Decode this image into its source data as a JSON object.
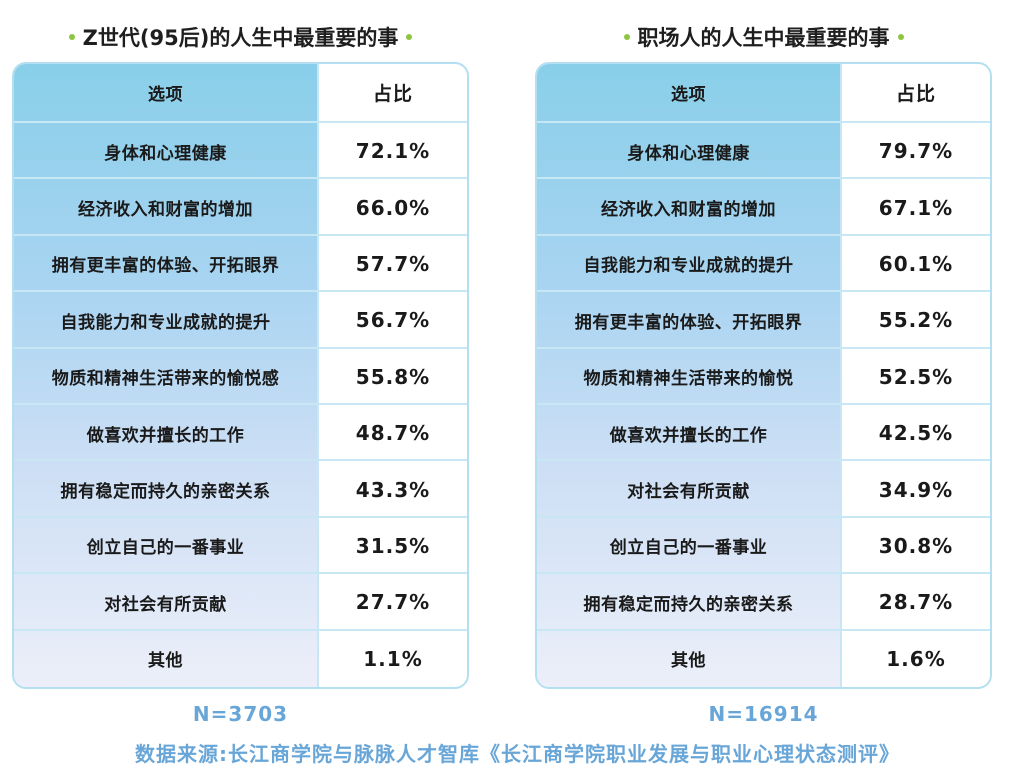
{
  "left": {
    "title": "Z世代(95后)的人生中最重要的事",
    "header": {
      "option": "选项",
      "ratio": "占比"
    },
    "rows": [
      {
        "option": "身体和心理健康",
        "ratio": "72.1%"
      },
      {
        "option": "经济收入和财富的增加",
        "ratio": "66.0%"
      },
      {
        "option": "拥有更丰富的体验、开拓眼界",
        "ratio": "57.7%"
      },
      {
        "option": "自我能力和专业成就的提升",
        "ratio": "56.7%"
      },
      {
        "option": "物质和精神生活带来的愉悦感",
        "ratio": "55.8%"
      },
      {
        "option": "做喜欢并擅长的工作",
        "ratio": "48.7%"
      },
      {
        "option": "拥有稳定而持久的亲密关系",
        "ratio": "43.3%"
      },
      {
        "option": "创立自己的一番事业",
        "ratio": "31.5%"
      },
      {
        "option": "对社会有所贡献",
        "ratio": "27.7%"
      },
      {
        "option": "其他",
        "ratio": "1.1%"
      }
    ],
    "n": "N=3703"
  },
  "right": {
    "title": "职场人的人生中最重要的事",
    "header": {
      "option": "选项",
      "ratio": "占比"
    },
    "rows": [
      {
        "option": "身体和心理健康",
        "ratio": "79.7%"
      },
      {
        "option": "经济收入和财富的增加",
        "ratio": "67.1%"
      },
      {
        "option": "自我能力和专业成就的提升",
        "ratio": "60.1%"
      },
      {
        "option": "拥有更丰富的体验、开拓眼界",
        "ratio": "55.2%"
      },
      {
        "option": "物质和精神生活带来的愉悦",
        "ratio": "52.5%"
      },
      {
        "option": "做喜欢并擅长的工作",
        "ratio": "42.5%"
      },
      {
        "option": "对社会有所贡献",
        "ratio": "34.9%"
      },
      {
        "option": "创立自己的一番事业",
        "ratio": "30.8%"
      },
      {
        "option": "拥有稳定而持久的亲密关系",
        "ratio": "28.7%"
      },
      {
        "option": "其他",
        "ratio": "1.6%"
      }
    ],
    "n": "N=16914"
  },
  "source": "数据来源:长江商学院与脉脉人才智库《长江商学院职业发展与职业心理状态测评》",
  "colors": {
    "accent_dot": "#8cc63f",
    "border": "#b4dff0",
    "footer_text": "#69a6d8",
    "gradient_top": "#89cfe9",
    "gradient_bottom": "#eceff9"
  }
}
